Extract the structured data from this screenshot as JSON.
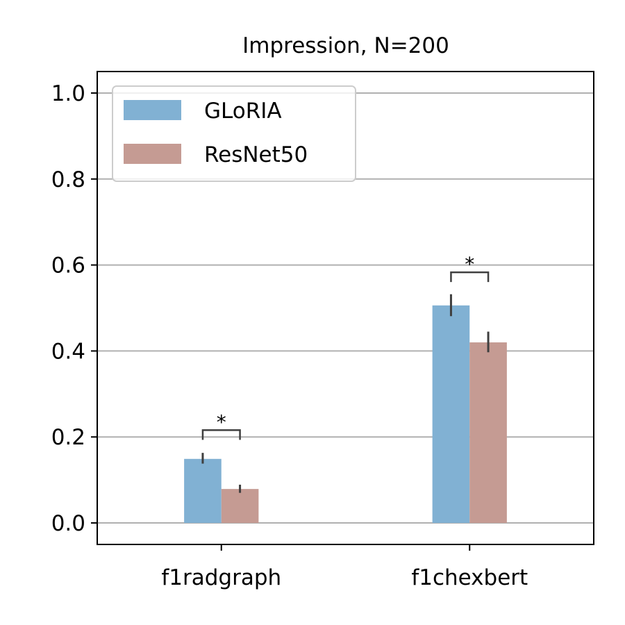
{
  "chart_data": {
    "type": "bar",
    "title": "Impression, N=200",
    "xlabel": "",
    "ylabel": "",
    "categories": [
      "f1radgraph",
      "f1chexbert"
    ],
    "series": [
      {
        "name": "GLoRIA",
        "color": "#81b1d3",
        "values": [
          0.149,
          0.506
        ],
        "err_low": [
          0.138,
          0.481
        ],
        "err_high": [
          0.163,
          0.532
        ]
      },
      {
        "name": "ResNet50",
        "color": "#c59b93",
        "values": [
          0.079,
          0.42
        ],
        "err_low": [
          0.07,
          0.397
        ],
        "err_high": [
          0.089,
          0.445
        ]
      }
    ],
    "significance": [
      {
        "category": "f1radgraph",
        "label": "*",
        "level": 0.216
      },
      {
        "category": "f1chexbert",
        "label": "*",
        "level": 0.583
      }
    ],
    "ylim": [
      -0.05,
      1.05
    ],
    "yticks": [
      0.0,
      0.2,
      0.4,
      0.6,
      0.8,
      1.0
    ],
    "ytick_labels": [
      "0.0",
      "0.2",
      "0.4",
      "0.6",
      "0.8",
      "1.0"
    ],
    "grid": "horizontal",
    "legend_position": "top-left"
  }
}
